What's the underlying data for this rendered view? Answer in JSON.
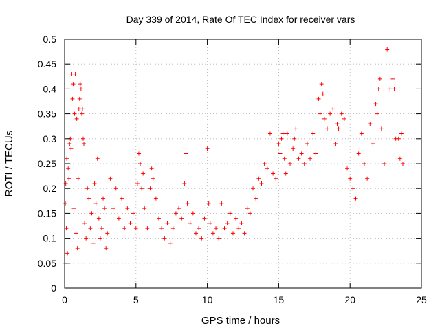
{
  "chart_data": {
    "type": "scatter",
    "title": "Day 339 of 2014, Rate Of TEC Index for receiver vars",
    "xlabel": "GPS time / hours",
    "ylabel": "ROTI / TECUs",
    "xlim": [
      0,
      25
    ],
    "ylim": [
      0,
      0.5
    ],
    "xticks": [
      0,
      5,
      10,
      15,
      20,
      25
    ],
    "xtick_labels": [
      "0",
      "5",
      "10",
      "15",
      "20",
      "25"
    ],
    "yticks": [
      0,
      0.05,
      0.1,
      0.15,
      0.2,
      0.25,
      0.3,
      0.35,
      0.4,
      0.45,
      0.5
    ],
    "ytick_labels": [
      "0",
      "0.05",
      "0.1",
      "0.15",
      "0.2",
      "0.25",
      "0.3",
      "0.35",
      "0.4",
      "0.45",
      "0.5"
    ],
    "grid": true,
    "marker": "+",
    "color": "#ff0000",
    "series": [
      {
        "points": [
          [
            0.02,
            0.05
          ],
          [
            0.05,
            0.17
          ],
          [
            0.08,
            0.21
          ],
          [
            0.12,
            0.12
          ],
          [
            0.15,
            0.26
          ],
          [
            0.2,
            0.07
          ],
          [
            0.25,
            0.24
          ],
          [
            0.3,
            0.22
          ],
          [
            0.35,
            0.29
          ],
          [
            0.4,
            0.3
          ],
          [
            0.45,
            0.28
          ],
          [
            0.5,
            0.43
          ],
          [
            0.55,
            0.38
          ],
          [
            0.6,
            0.41
          ],
          [
            0.65,
            0.16
          ],
          [
            0.7,
            0.35
          ],
          [
            0.75,
            0.43
          ],
          [
            0.8,
            0.11
          ],
          [
            0.85,
            0.34
          ],
          [
            0.9,
            0.08
          ],
          [
            0.95,
            0.22
          ],
          [
            1.0,
            0.36
          ],
          [
            1.05,
            0.38
          ],
          [
            1.1,
            0.41
          ],
          [
            1.15,
            0.4
          ],
          [
            1.2,
            0.35
          ],
          [
            1.25,
            0.36
          ],
          [
            1.3,
            0.3
          ],
          [
            1.35,
            0.29
          ],
          [
            1.4,
            0.13
          ],
          [
            1.5,
            0.1
          ],
          [
            1.6,
            0.2
          ],
          [
            1.7,
            0.18
          ],
          [
            1.8,
            0.12
          ],
          [
            1.9,
            0.15
          ],
          [
            2.0,
            0.09
          ],
          [
            2.1,
            0.21
          ],
          [
            2.2,
            0.17
          ],
          [
            2.3,
            0.26
          ],
          [
            2.4,
            0.14
          ],
          [
            2.5,
            0.1
          ],
          [
            2.6,
            0.12
          ],
          [
            2.7,
            0.18
          ],
          [
            2.8,
            0.16
          ],
          [
            2.9,
            0.08
          ],
          [
            3.0,
            0.11
          ],
          [
            3.2,
            0.22
          ],
          [
            3.4,
            0.16
          ],
          [
            3.6,
            0.2
          ],
          [
            3.8,
            0.14
          ],
          [
            4.0,
            0.18
          ],
          [
            4.2,
            0.12
          ],
          [
            4.4,
            0.16
          ],
          [
            4.6,
            0.13
          ],
          [
            4.8,
            0.15
          ],
          [
            5.0,
            0.12
          ],
          [
            5.1,
            0.21
          ],
          [
            5.2,
            0.27
          ],
          [
            5.3,
            0.25
          ],
          [
            5.4,
            0.2
          ],
          [
            5.5,
            0.23
          ],
          [
            5.6,
            0.16
          ],
          [
            5.8,
            0.12
          ],
          [
            6.0,
            0.2
          ],
          [
            6.1,
            0.24
          ],
          [
            6.2,
            0.22
          ],
          [
            6.4,
            0.18
          ],
          [
            6.6,
            0.14
          ],
          [
            6.8,
            0.12
          ],
          [
            7.0,
            0.1
          ],
          [
            7.2,
            0.13
          ],
          [
            7.4,
            0.09
          ],
          [
            7.6,
            0.12
          ],
          [
            7.8,
            0.15
          ],
          [
            8.0,
            0.16
          ],
          [
            8.2,
            0.14
          ],
          [
            8.4,
            0.21
          ],
          [
            8.5,
            0.27
          ],
          [
            8.6,
            0.17
          ],
          [
            8.8,
            0.13
          ],
          [
            9.0,
            0.15
          ],
          [
            9.2,
            0.11
          ],
          [
            9.4,
            0.12
          ],
          [
            9.6,
            0.1
          ],
          [
            9.8,
            0.14
          ],
          [
            10.0,
            0.28
          ],
          [
            10.1,
            0.17
          ],
          [
            10.2,
            0.13
          ],
          [
            10.4,
            0.11
          ],
          [
            10.6,
            0.12
          ],
          [
            10.8,
            0.1
          ],
          [
            11.0,
            0.17
          ],
          [
            11.2,
            0.12
          ],
          [
            11.4,
            0.13
          ],
          [
            11.6,
            0.15
          ],
          [
            11.8,
            0.11
          ],
          [
            12.0,
            0.14
          ],
          [
            12.2,
            0.12
          ],
          [
            12.4,
            0.13
          ],
          [
            12.6,
            0.11
          ],
          [
            12.8,
            0.16
          ],
          [
            13.0,
            0.15
          ],
          [
            13.2,
            0.2
          ],
          [
            13.4,
            0.18
          ],
          [
            13.6,
            0.22
          ],
          [
            13.8,
            0.21
          ],
          [
            14.0,
            0.25
          ],
          [
            14.2,
            0.24
          ],
          [
            14.4,
            0.31
          ],
          [
            14.6,
            0.23
          ],
          [
            14.8,
            0.22
          ],
          [
            15.0,
            0.29
          ],
          [
            15.1,
            0.27
          ],
          [
            15.2,
            0.3
          ],
          [
            15.3,
            0.31
          ],
          [
            15.4,
            0.26
          ],
          [
            15.5,
            0.23
          ],
          [
            15.6,
            0.31
          ],
          [
            15.8,
            0.25
          ],
          [
            16.0,
            0.28
          ],
          [
            16.1,
            0.3
          ],
          [
            16.2,
            0.32
          ],
          [
            16.4,
            0.26
          ],
          [
            16.6,
            0.27
          ],
          [
            16.8,
            0.25
          ],
          [
            17.0,
            0.29
          ],
          [
            17.2,
            0.26
          ],
          [
            17.4,
            0.31
          ],
          [
            17.6,
            0.27
          ],
          [
            17.8,
            0.38
          ],
          [
            17.9,
            0.35
          ],
          [
            18.0,
            0.41
          ],
          [
            18.1,
            0.39
          ],
          [
            18.2,
            0.34
          ],
          [
            18.4,
            0.32
          ],
          [
            18.6,
            0.35
          ],
          [
            18.8,
            0.36
          ],
          [
            19.0,
            0.29
          ],
          [
            19.1,
            0.33
          ],
          [
            19.2,
            0.32
          ],
          [
            19.4,
            0.35
          ],
          [
            19.6,
            0.34
          ],
          [
            19.8,
            0.24
          ],
          [
            20.0,
            0.22
          ],
          [
            20.2,
            0.2
          ],
          [
            20.4,
            0.18
          ],
          [
            20.6,
            0.27
          ],
          [
            20.8,
            0.31
          ],
          [
            21.0,
            0.25
          ],
          [
            21.2,
            0.22
          ],
          [
            21.4,
            0.33
          ],
          [
            21.6,
            0.29
          ],
          [
            21.8,
            0.37
          ],
          [
            21.9,
            0.35
          ],
          [
            22.0,
            0.4
          ],
          [
            22.1,
            0.42
          ],
          [
            22.2,
            0.32
          ],
          [
            22.4,
            0.25
          ],
          [
            22.6,
            0.48
          ],
          [
            22.8,
            0.4
          ],
          [
            23.0,
            0.42
          ],
          [
            23.1,
            0.4
          ],
          [
            23.2,
            0.3
          ],
          [
            23.4,
            0.3
          ],
          [
            23.5,
            0.26
          ],
          [
            23.6,
            0.31
          ],
          [
            23.7,
            0.25
          ]
        ]
      }
    ]
  }
}
